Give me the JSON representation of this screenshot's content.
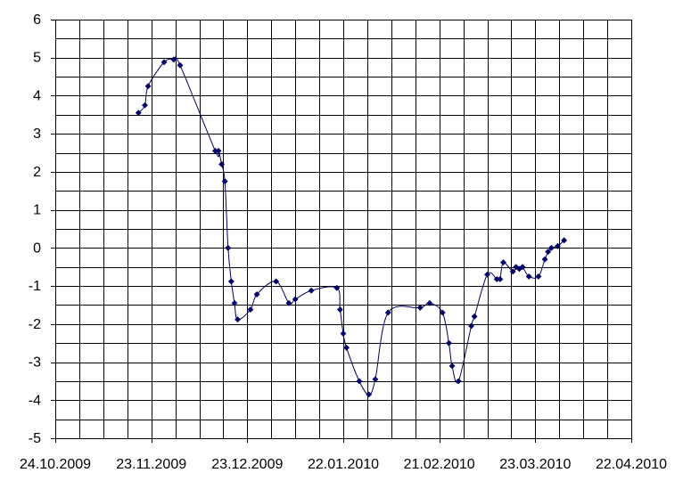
{
  "chart_data": {
    "type": "line",
    "title": "",
    "xlabel": "",
    "ylabel": "",
    "x_axis": {
      "type": "date",
      "min": "2009-10-24",
      "max": "2010-04-22",
      "tick_labels": [
        "24.10.2009",
        "23.11.2009",
        "23.12.2009",
        "22.01.2010",
        "21.02.2010",
        "23.03.2010",
        "22.04.2010"
      ],
      "tick_values": [
        "2009-10-24",
        "2009-11-23",
        "2009-12-23",
        "2010-01-22",
        "2010-02-21",
        "2010-03-23",
        "2010-04-22"
      ],
      "minor_grid_step_days": 7.5
    },
    "y_axis": {
      "min": -5,
      "max": 6,
      "tick_labels": [
        "6",
        "5",
        "4",
        "3",
        "2",
        "1",
        "0",
        "-1",
        "-2",
        "-3",
        "-4",
        "-5"
      ],
      "tick_values": [
        6,
        5,
        4,
        3,
        2,
        1,
        0,
        -1,
        -2,
        -3,
        -4,
        -5
      ],
      "minor_grid_step": 0.5
    },
    "grid": true,
    "legend": "none",
    "series": [
      {
        "color": "#000066",
        "line_style": "smoothed",
        "marker": "diamond",
        "points": [
          {
            "x": "2009-11-19",
            "y": 3.55
          },
          {
            "x": "2009-11-21",
            "y": 3.75
          },
          {
            "x": "2009-11-22",
            "y": 4.25
          },
          {
            "x": "2009-11-27",
            "y": 4.88
          },
          {
            "x": "2009-11-30",
            "y": 4.95
          },
          {
            "x": "2009-12-02",
            "y": 4.8
          },
          {
            "x": "2009-12-13",
            "y": 2.55
          },
          {
            "x": "2009-12-14",
            "y": 2.55
          },
          {
            "x": "2009-12-15",
            "y": 2.2
          },
          {
            "x": "2009-12-16",
            "y": 1.75
          },
          {
            "x": "2009-12-17",
            "y": 0.0
          },
          {
            "x": "2009-12-18",
            "y": -0.88
          },
          {
            "x": "2009-12-19",
            "y": -1.45
          },
          {
            "x": "2009-12-20",
            "y": -1.88
          },
          {
            "x": "2009-12-24",
            "y": -1.62
          },
          {
            "x": "2009-12-26",
            "y": -1.22
          },
          {
            "x": "2010-01-01",
            "y": -0.88
          },
          {
            "x": "2010-01-05",
            "y": -1.45
          },
          {
            "x": "2010-01-07",
            "y": -1.35
          },
          {
            "x": "2010-01-12",
            "y": -1.12
          },
          {
            "x": "2010-01-20",
            "y": -1.05
          },
          {
            "x": "2010-01-21",
            "y": -1.62
          },
          {
            "x": "2010-01-22",
            "y": -2.25
          },
          {
            "x": "2010-01-23",
            "y": -2.62
          },
          {
            "x": "2010-01-27",
            "y": -3.5
          },
          {
            "x": "2010-01-30",
            "y": -3.85
          },
          {
            "x": "2010-02-01",
            "y": -3.45
          },
          {
            "x": "2010-02-05",
            "y": -1.7
          },
          {
            "x": "2010-02-15",
            "y": -1.57
          },
          {
            "x": "2010-02-18",
            "y": -1.45
          },
          {
            "x": "2010-02-22",
            "y": -1.7
          },
          {
            "x": "2010-02-24",
            "y": -2.5
          },
          {
            "x": "2010-02-25",
            "y": -3.1
          },
          {
            "x": "2010-02-27",
            "y": -3.5
          },
          {
            "x": "2010-03-03",
            "y": -2.05
          },
          {
            "x": "2010-03-04",
            "y": -1.8
          },
          {
            "x": "2010-03-08",
            "y": -0.7
          },
          {
            "x": "2010-03-11",
            "y": -0.82
          },
          {
            "x": "2010-03-12",
            "y": -0.82
          },
          {
            "x": "2010-03-13",
            "y": -0.38
          },
          {
            "x": "2010-03-16",
            "y": -0.62
          },
          {
            "x": "2010-03-17",
            "y": -0.5
          },
          {
            "x": "2010-03-18",
            "y": -0.55
          },
          {
            "x": "2010-03-19",
            "y": -0.5
          },
          {
            "x": "2010-03-21",
            "y": -0.75
          },
          {
            "x": "2010-03-24",
            "y": -0.75
          },
          {
            "x": "2010-03-26",
            "y": -0.3
          },
          {
            "x": "2010-03-27",
            "y": -0.1
          },
          {
            "x": "2010-03-28",
            "y": 0.0
          },
          {
            "x": "2010-03-30",
            "y": 0.05
          },
          {
            "x": "2010-04-01",
            "y": 0.2
          }
        ]
      }
    ]
  }
}
